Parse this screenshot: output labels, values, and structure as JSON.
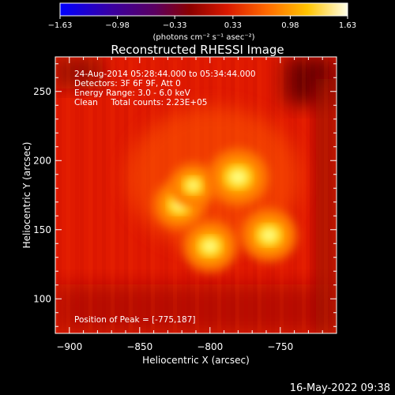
{
  "colorbar": {
    "ticks": [
      "-1.63",
      "-0.98",
      "-0.33",
      "0.33",
      "0.98",
      "1.63"
    ],
    "tick_values": [
      -1.63,
      -0.98,
      -0.33,
      0.33,
      0.98,
      1.63
    ],
    "range": [
      -1.63,
      1.63
    ],
    "unit_label": "(photons cm⁻² s⁻¹ asec⁻²)"
  },
  "chart_data": {
    "type": "heatmap",
    "title": "Reconstructed RHESSI Image",
    "xlabel": "Heliocentric X (arcsec)",
    "ylabel": "Heliocentric Y (arcsec)",
    "xlim": [
      -910,
      -710
    ],
    "ylim": [
      75,
      275
    ],
    "xticks": [
      -900,
      -850,
      -800,
      -750
    ],
    "yticks": [
      100,
      150,
      200,
      250
    ],
    "xtick_labels": [
      "−900",
      "−850",
      "−800",
      "−750"
    ],
    "ytick_labels": [
      "100",
      "150",
      "200",
      "250"
    ],
    "annotations": [
      "24-Aug-2014 05:28:44.000 to 05:34:44.000",
      "Detectors: 3F 6F 9F, Att 0",
      "Energy Range: 3.0 - 6.0 keV",
      "Clean     Total counts: 2.23E+05"
    ],
    "peak_label": "Position of Peak = [-775,187]",
    "sources": [
      {
        "x": -822,
        "y": 168,
        "intensity": 1.35
      },
      {
        "x": -812,
        "y": 182,
        "intensity": 1.2
      },
      {
        "x": -780,
        "y": 188,
        "intensity": 1.63
      },
      {
        "x": -800,
        "y": 138,
        "intensity": 1.45
      },
      {
        "x": -758,
        "y": 146,
        "intensity": 1.5
      }
    ]
  },
  "timestamp": "16-May-2022 09:38"
}
